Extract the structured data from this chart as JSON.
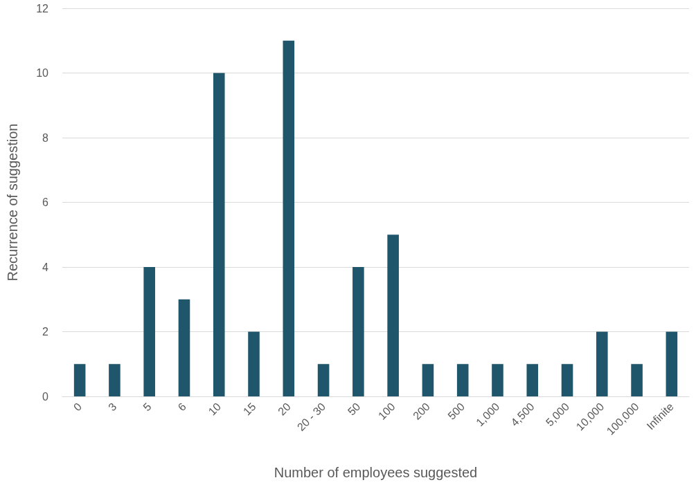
{
  "chart_data": {
    "type": "bar",
    "xlabel": "Number of employees suggested",
    "ylabel": "Recurrence of suggestion",
    "categories": [
      "0",
      "3",
      "5",
      "6",
      "10",
      "15",
      "20",
      "20 - 30",
      "50",
      "100",
      "200",
      "500",
      "1,000",
      "4,500",
      "5,000",
      "10,000",
      "100,000",
      "Infinite"
    ],
    "values": [
      1,
      1,
      4,
      3,
      10,
      2,
      11,
      1,
      4,
      5,
      1,
      1,
      1,
      1,
      1,
      2,
      1,
      2
    ],
    "color": "#1f566c",
    "ylim": [
      0,
      12
    ],
    "yticks": [
      0,
      2,
      4,
      6,
      8,
      10,
      12
    ],
    "grid": "y"
  }
}
